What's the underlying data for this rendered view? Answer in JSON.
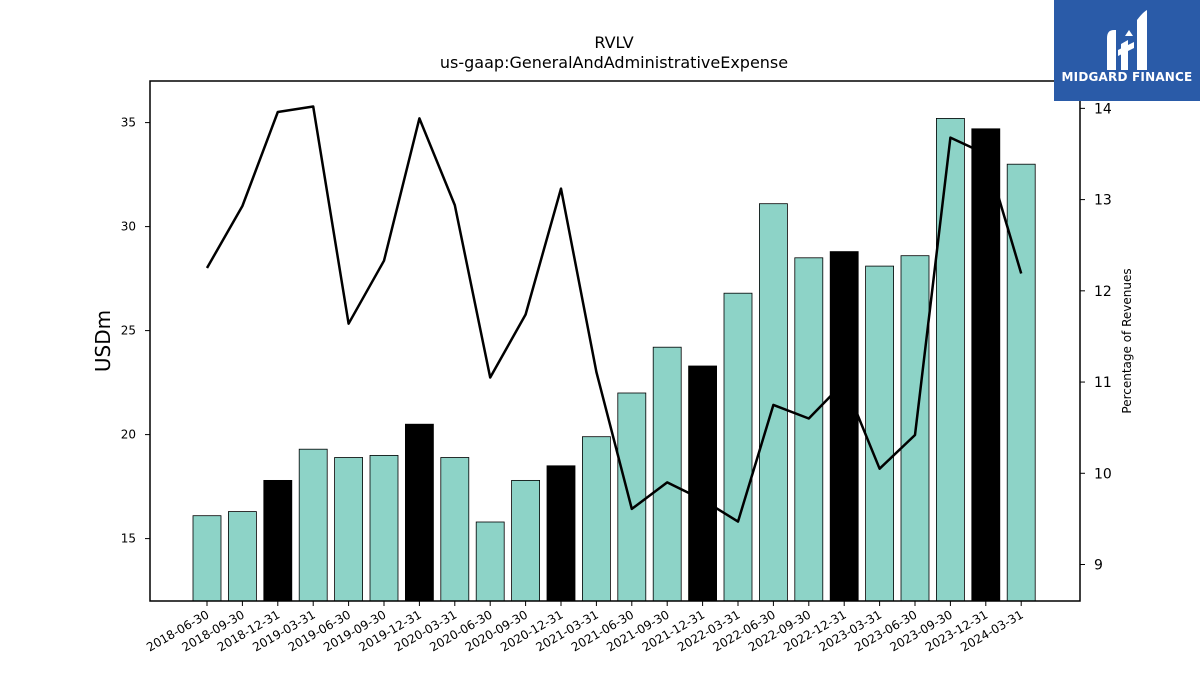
{
  "brand": {
    "name": "MIDGARD FINANCE",
    "bg_color": "#2a5ba8"
  },
  "chart_data": {
    "type": "bar",
    "title": "RVLV",
    "subtitle": "us-gaap:GeneralAndAdministrativeExpense",
    "ylabel": "USDm",
    "y2label": "Percentage of Revenues",
    "ylim": [
      12,
      37
    ],
    "y2lim": [
      8.6,
      14.3
    ],
    "yticks": [
      15,
      20,
      25,
      30,
      35
    ],
    "y2ticks": [
      9,
      10,
      11,
      12,
      13,
      14
    ],
    "categories": [
      "2018-06-30",
      "2018-09-30",
      "2018-12-31",
      "2019-03-31",
      "2019-06-30",
      "2019-09-30",
      "2019-12-31",
      "2020-03-31",
      "2020-06-30",
      "2020-09-30",
      "2020-12-31",
      "2021-03-31",
      "2021-06-30",
      "2021-09-30",
      "2021-12-31",
      "2022-03-31",
      "2022-06-30",
      "2022-09-30",
      "2022-12-31",
      "2023-03-31",
      "2023-06-30",
      "2023-09-30",
      "2023-12-31",
      "2024-03-31"
    ],
    "series": [
      {
        "kind": "bar",
        "values": [
          16.1,
          16.3,
          17.8,
          19.3,
          18.9,
          19.0,
          20.5,
          18.9,
          15.8,
          17.8,
          18.5,
          19.9,
          22.0,
          24.2,
          23.3,
          26.8,
          31.1,
          28.5,
          28.8,
          28.1,
          28.6,
          35.2,
          34.7,
          33.0
        ],
        "highlight": [
          false,
          false,
          true,
          false,
          false,
          false,
          true,
          false,
          false,
          false,
          true,
          false,
          false,
          false,
          true,
          false,
          false,
          false,
          true,
          false,
          false,
          false,
          true,
          false
        ],
        "color": "#8dd3c7",
        "highlight_color": "#000000"
      },
      {
        "kind": "line",
        "axis": "right",
        "values": [
          12.25,
          12.93,
          13.96,
          14.02,
          11.64,
          12.33,
          13.89,
          12.94,
          11.05,
          11.74,
          13.12,
          11.11,
          9.61,
          9.9,
          9.71,
          9.47,
          10.75,
          10.6,
          11.0,
          10.05,
          10.42,
          13.68,
          13.5,
          12.19
        ],
        "color": "#000000"
      }
    ]
  }
}
